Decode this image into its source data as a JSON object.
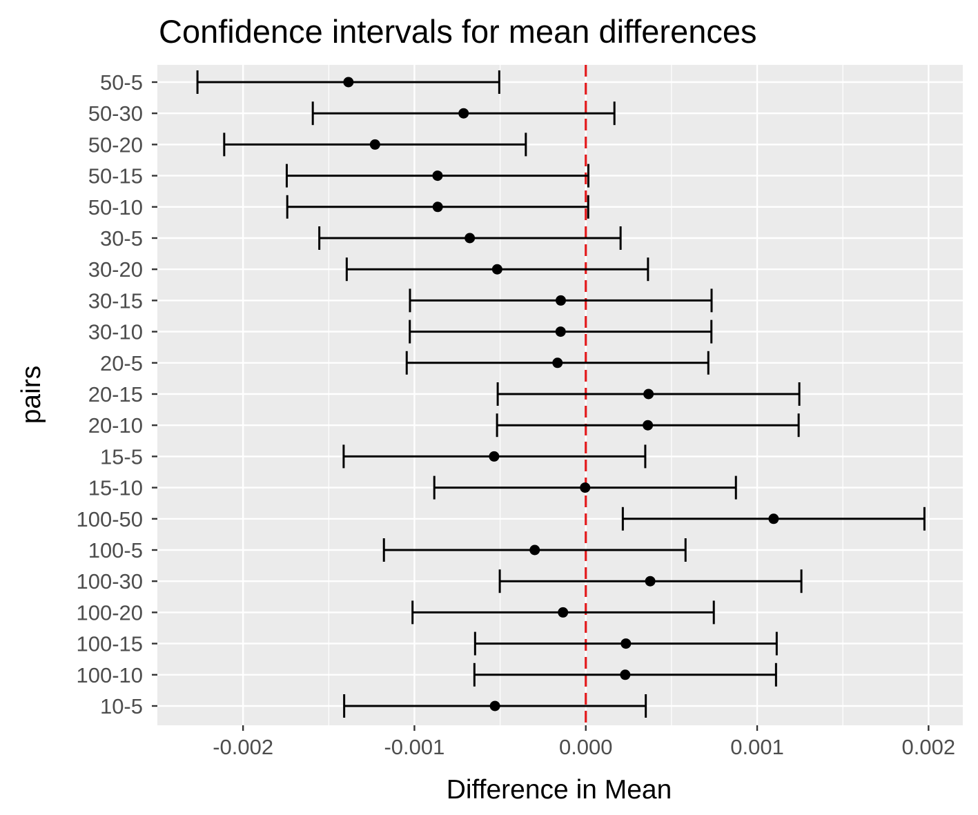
{
  "chart_data": {
    "type": "errorbar",
    "title": "Confidence intervals for mean differences",
    "xlabel": "Difference in Mean",
    "ylabel": "pairs",
    "xlim": [
      -0.0025,
      0.0022
    ],
    "x_ticks": [
      -0.002,
      -0.001,
      0.0,
      0.001,
      0.002
    ],
    "x_tick_labels": [
      "-0.002",
      "-0.001",
      "0.000",
      "0.001",
      "0.002"
    ],
    "reference_line": {
      "x": 0.0,
      "color": "#e41a1c",
      "style": "dashed"
    },
    "grid": true,
    "panel_background": "#ebebeb",
    "grid_color": "#ffffff",
    "point_color": "#000000",
    "categories": [
      "50-5",
      "50-30",
      "50-20",
      "50-15",
      "50-10",
      "30-5",
      "30-20",
      "30-15",
      "30-10",
      "20-5",
      "20-15",
      "20-10",
      "15-5",
      "15-10",
      "100-50",
      "100-5",
      "100-30",
      "100-20",
      "100-15",
      "100-10",
      "10-5"
    ],
    "estimate": [
      -0.001385,
      -0.000713,
      -0.00123,
      -0.000865,
      -0.000864,
      -0.000677,
      -0.000517,
      -0.000146,
      -0.000147,
      -0.000165,
      0.000366,
      0.000362,
      -0.000535,
      -4e-06,
      0.001096,
      -0.000298,
      0.000376,
      -0.000133,
      0.000234,
      0.00023,
      -0.00053
    ],
    "lower": [
      -0.002266,
      -0.001593,
      -0.00211,
      -0.001745,
      -0.001742,
      -0.001555,
      -0.001395,
      -0.001026,
      -0.001027,
      -0.001045,
      -0.000514,
      -0.000518,
      -0.001413,
      -0.000884,
      0.000216,
      -0.001178,
      -0.000502,
      -0.001011,
      -0.000646,
      -0.00065,
      -0.00141
    ],
    "upper": [
      -0.000505,
      0.000167,
      -0.00035,
      1.5e-05,
      1.4e-05,
      0.000203,
      0.000363,
      0.000734,
      0.000733,
      0.000715,
      0.001246,
      0.001242,
      0.000347,
      0.000876,
      0.001976,
      0.000582,
      0.001258,
      0.000747,
      0.001114,
      0.00111,
      0.00035
    ]
  }
}
